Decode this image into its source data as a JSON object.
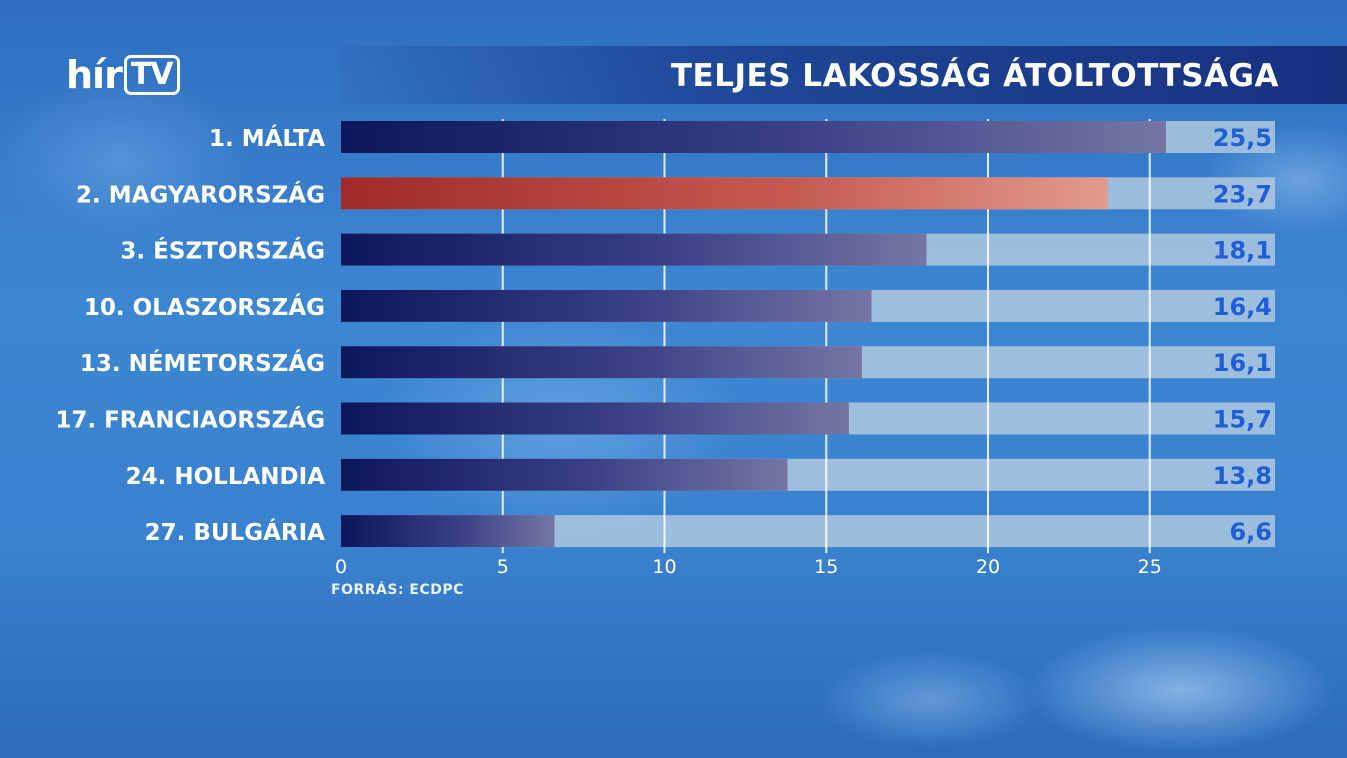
{
  "header": {
    "logo_hir": "hír",
    "logo_tv": "TV",
    "title": "TELJES LAKOSSÁG ÁTOLTOTTSÁGA"
  },
  "source": "FORRÁS: ECDPC",
  "colors": {
    "bar_dark": "#0f1a5c",
    "bar_dark_end": "#6e6f9e",
    "bar_highlight": "#a8322c",
    "bar_highlight_end": "#d9877c",
    "track": "#a9c4dc",
    "value_text": "#1f5fd6"
  },
  "chart_data": {
    "type": "bar",
    "orientation": "horizontal",
    "categories": [
      "1. MÁLTA",
      "2. MAGYARORSZÁG",
      "3. ÉSZTORSZÁG",
      "10. OLASZORSZÁG",
      "13. NÉMETORSZÁG",
      "17. FRANCIAORSZÁG",
      "24. HOLLANDIA",
      "27. BULGÁRIA"
    ],
    "values": [
      25.5,
      23.7,
      18.1,
      16.4,
      16.1,
      15.7,
      13.8,
      6.6
    ],
    "value_labels": [
      "25,5",
      "23,7",
      "18,1",
      "16,4",
      "16,1",
      "15,7",
      "13,8",
      "6,6"
    ],
    "highlight_index": 1,
    "xticks": [
      0,
      5,
      10,
      15,
      20,
      25
    ],
    "xlim": [
      0,
      25.5
    ],
    "grid": true,
    "title": "TELJES LAKOSSÁG ÁTOLTOTTSÁGA"
  }
}
